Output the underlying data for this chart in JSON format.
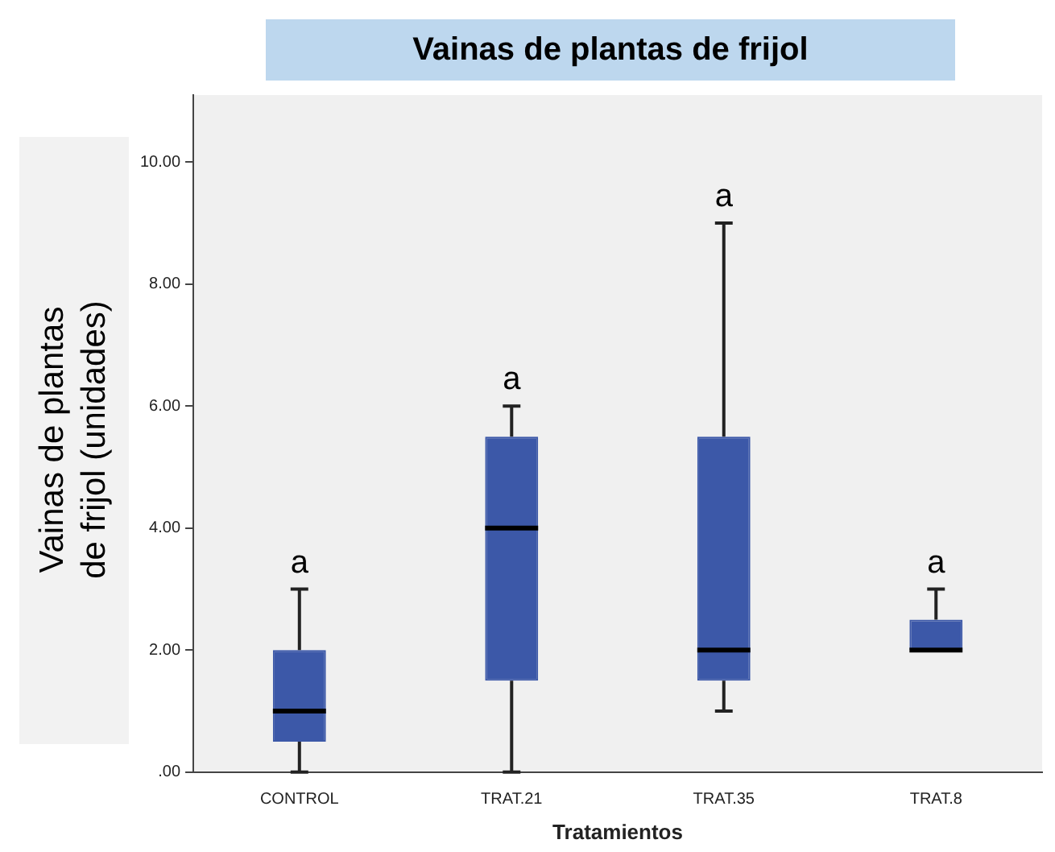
{
  "chart_data": {
    "type": "box",
    "title": "Vainas de plantas de frijol",
    "xlabel": "Tratamientos",
    "ylabel": "Vainas de plantas de frijol (unidades)",
    "categories": [
      "CONTROL",
      "TRAT.21",
      "TRAT.35",
      "TRAT.8"
    ],
    "color": "#3c58a8",
    "boxes": [
      {
        "low": 0,
        "q1": 0.5,
        "median": 1,
        "q3": 2,
        "high": 3
      },
      {
        "low": 0,
        "q1": 1.5,
        "median": 4,
        "q3": 5.5,
        "high": 6
      },
      {
        "low": 1,
        "q1": 1.5,
        "median": 2,
        "q3": 5.5,
        "high": 9
      },
      {
        "low": 2,
        "q1": 2,
        "median": 2,
        "q3": 2.5,
        "high": 3
      }
    ],
    "ylim": [
      0,
      11.1
    ],
    "yticks": [
      {
        "value": 0,
        "label": ".00"
      },
      {
        "value": 2,
        "label": "2.00"
      },
      {
        "value": 4,
        "label": "4.00"
      },
      {
        "value": 6,
        "label": "6.00"
      },
      {
        "value": 8,
        "label": "8.00"
      },
      {
        "value": 10,
        "label": "10.00"
      }
    ],
    "annotations": [
      "a",
      "a",
      "a",
      "a"
    ]
  }
}
